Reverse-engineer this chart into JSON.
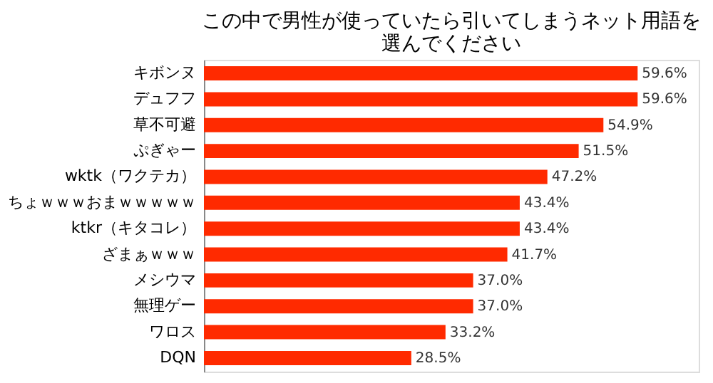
{
  "chart_data": {
    "type": "bar",
    "orientation": "horizontal",
    "title": "この中で男性が使っていたら引いてしまうネット用語を選んでください",
    "categories": [
      "キボンヌ",
      "デュフフ",
      "草不可避",
      "ぷぎゃー",
      "wktk（ワクテカ）",
      "ちょｗｗｗおまｗｗｗｗｗ",
      "ktkr（キタコレ）",
      "ざまぁｗｗｗ",
      "メシウマ",
      "無理ゲー",
      "ワロス",
      "DQN"
    ],
    "values": [
      59.6,
      59.6,
      54.9,
      51.5,
      47.2,
      43.4,
      43.4,
      41.7,
      37.0,
      37.0,
      33.2,
      28.5
    ],
    "value_labels": [
      "59.6%",
      "59.6%",
      "54.9%",
      "51.5%",
      "47.2%",
      "43.4%",
      "43.4%",
      "41.7%",
      "37.0%",
      "37.0%",
      "33.2%",
      "28.5%"
    ],
    "color": "#ff2a00",
    "xlim": [
      0,
      68
    ],
    "tick_labels": "y",
    "grid": false
  }
}
